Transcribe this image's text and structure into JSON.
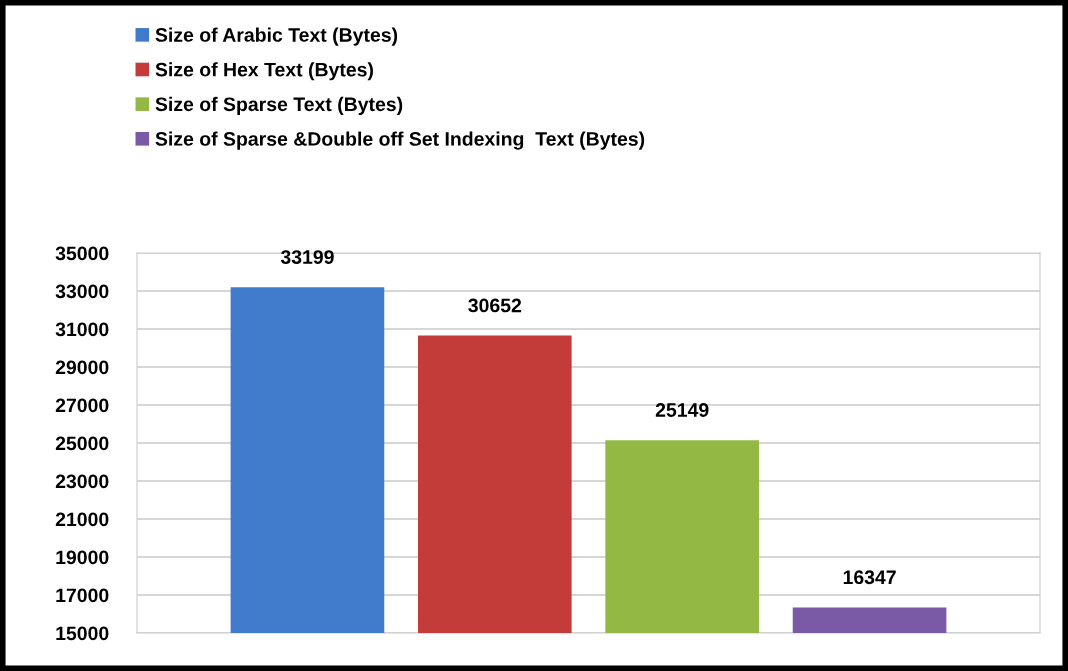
{
  "chart_data": {
    "type": "bar",
    "categories": [
      null
    ],
    "series": [
      {
        "name": "Size of Arabic Text (Bytes)",
        "color": "#3f7acb",
        "values": [
          33199
        ]
      },
      {
        "name": "Size of Hex Text (Bytes)",
        "color": "#c43c3a",
        "values": [
          30652
        ]
      },
      {
        "name": "Size of Sparse Text (Bytes)",
        "color": "#93b844",
        "values": [
          25149
        ]
      },
      {
        "name": "Size of Sparse &Double off Set Indexing  Text (Bytes)",
        "color": "#7a5aa6",
        "values": [
          16347
        ]
      }
    ],
    "ylim": [
      15000,
      35000
    ],
    "yticks": [
      15000,
      17000,
      19000,
      21000,
      23000,
      25000,
      27000,
      29000,
      31000,
      33000,
      35000
    ],
    "grid": "y",
    "legend": "top",
    "data_labels": true
  }
}
